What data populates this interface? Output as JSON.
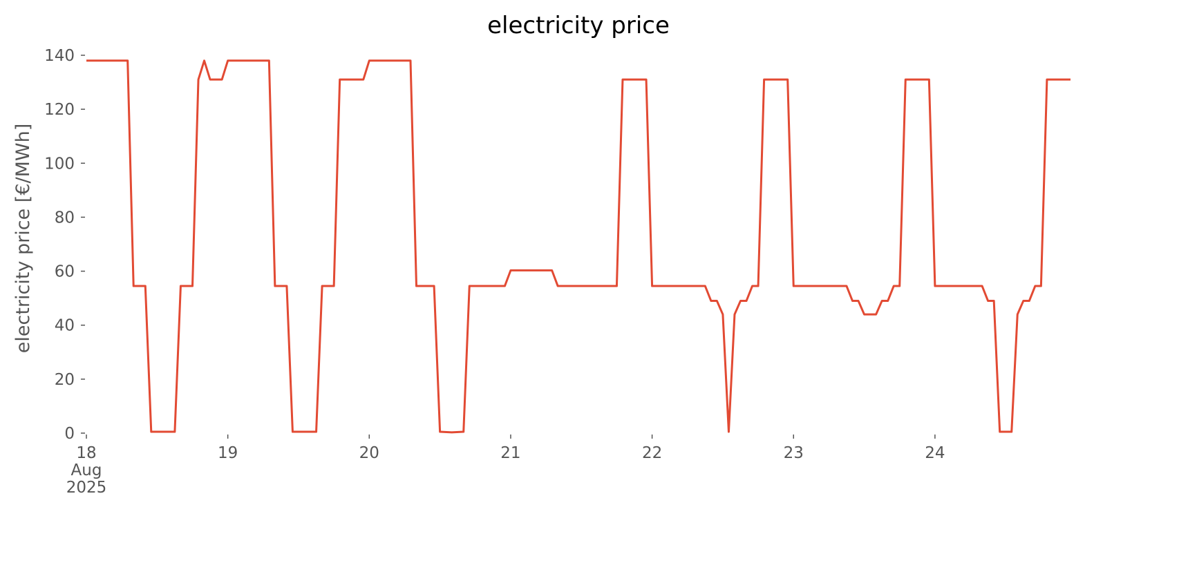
{
  "chart_data": {
    "type": "line",
    "title": "electricity price",
    "y_label": "electricity price [€/MWh]",
    "x": [
      18,
      18.2917,
      18.3333,
      18.4167,
      18.4583,
      18.625,
      18.6667,
      18.75,
      18.7917,
      18.8333,
      18.875,
      18.9583,
      19,
      19.2917,
      19.3333,
      19.4167,
      19.4583,
      19.625,
      19.6667,
      19.75,
      19.7917,
      19.9583,
      20,
      20.2917,
      20.3333,
      20.4583,
      20.5,
      20.5833,
      20.6667,
      20.7083,
      20.9583,
      21,
      21.2917,
      21.3333,
      21.75,
      21.7917,
      21.9583,
      22,
      22.375,
      22.4167,
      22.4583,
      22.5,
      22.5417,
      22.5833,
      22.625,
      22.6667,
      22.7083,
      22.75,
      22.7917,
      22.9583,
      23,
      23.375,
      23.4167,
      23.4583,
      23.5,
      23.5833,
      23.625,
      23.6667,
      23.7083,
      23.75,
      23.7917,
      23.9583,
      24,
      24.3333,
      24.375,
      24.4167,
      24.4583,
      24.5417,
      24.5833,
      24.625,
      24.6667,
      24.7083,
      24.75,
      24.7917,
      24.9583
    ],
    "series": [
      {
        "name": "electricity price",
        "color": "#e24a33",
        "values": [
          138,
          138,
          54.5,
          54.5,
          0.5,
          0.5,
          54.5,
          54.5,
          131,
          138,
          131,
          131,
          138,
          138,
          54.5,
          54.5,
          0.5,
          0.5,
          54.5,
          54.5,
          131,
          131,
          138,
          138,
          54.5,
          54.5,
          0.5,
          0.3,
          0.5,
          54.5,
          54.5,
          60.3,
          60.3,
          54.5,
          54.5,
          131,
          131,
          54.5,
          54.5,
          49,
          49,
          44,
          0.5,
          44,
          49,
          49,
          54.5,
          54.5,
          131,
          131,
          54.5,
          54.5,
          49,
          49,
          44,
          44,
          49,
          49,
          54.5,
          54.5,
          131,
          131,
          54.5,
          54.5,
          49,
          49,
          0.5,
          0.5,
          44,
          49,
          49,
          54.5,
          54.5,
          131,
          131
        ]
      }
    ],
    "xlim": [
      18,
      24.9583
    ],
    "xticks": [
      {
        "value": 18,
        "label": "18\nAug\n2025"
      },
      19,
      20,
      21,
      22,
      23,
      24
    ],
    "ylim": [
      0,
      140
    ],
    "yticks": [
      0,
      20,
      40,
      60,
      80,
      100,
      120,
      140
    ],
    "grid": false
  }
}
